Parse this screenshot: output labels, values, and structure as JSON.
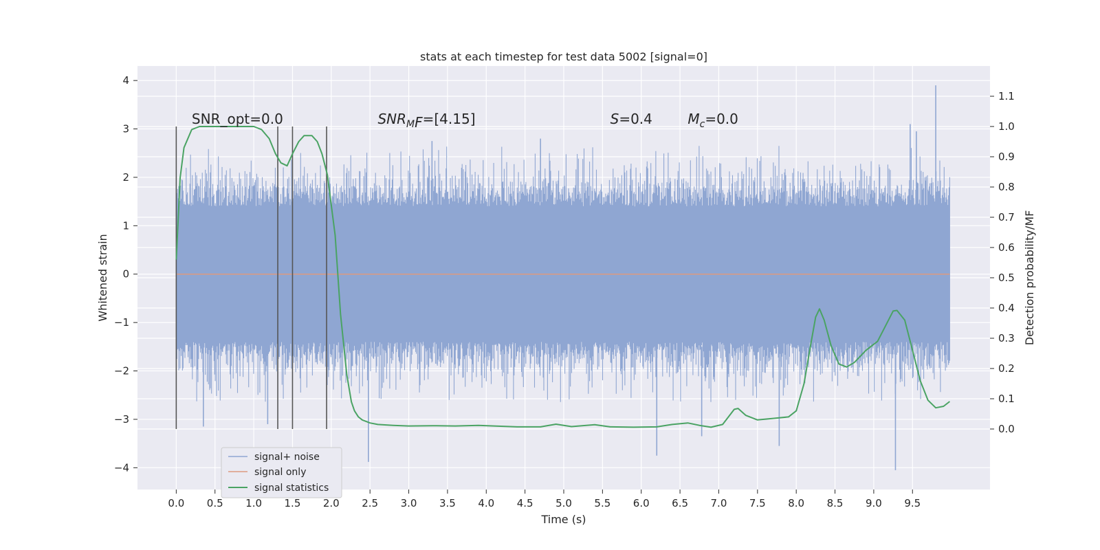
{
  "chart_data": {
    "type": "line",
    "title": "stats at each timestep for test data 5002 [signal=0]",
    "xlabel": "Time (s)",
    "ylabel_left": "Whitened strain",
    "ylabel_right": "Detection probability/MF",
    "xlim": [
      -0.5,
      10.5
    ],
    "ylim_left": [
      -4.45,
      4.3
    ],
    "ylim_right": [
      -0.2,
      1.2
    ],
    "x_ticks": [
      "0.0",
      "0.5",
      "1.0",
      "1.5",
      "2.0",
      "2.5",
      "3.0",
      "3.5",
      "4.0",
      "4.5",
      "5.0",
      "5.5",
      "6.0",
      "6.5",
      "7.0",
      "7.5",
      "8.0",
      "8.5",
      "9.0",
      "9.5"
    ],
    "x_tick_values": [
      0,
      0.5,
      1,
      1.5,
      2,
      2.5,
      3,
      3.5,
      4,
      4.5,
      5,
      5.5,
      6,
      6.5,
      7,
      7.5,
      8,
      8.5,
      9,
      9.5
    ],
    "y_left_ticks": [
      4,
      3,
      2,
      1,
      0,
      -1,
      -2,
      -3,
      -4
    ],
    "y_right_ticks": [
      "1.1",
      "1.0",
      "0.9",
      "0.8",
      "0.7",
      "0.6",
      "0.5",
      "0.4",
      "0.3",
      "0.2",
      "0.1",
      "0.0"
    ],
    "y_right_tick_values": [
      1.1,
      1.0,
      0.9,
      0.8,
      0.7,
      0.6,
      0.5,
      0.4,
      0.3,
      0.2,
      0.1,
      0.0
    ],
    "grid": true,
    "legend_position": "lower-left",
    "noise_band": {
      "x_start": 0,
      "x_end": 9.98,
      "typical_range": [
        -1.7,
        1.7
      ],
      "extreme_range": [
        -4.05,
        3.9
      ]
    },
    "noise_spikes": [
      {
        "x": 0.35,
        "y": -3.15
      },
      {
        "x": 2.48,
        "y": -3.88
      },
      {
        "x": 4.7,
        "y": 2.8
      },
      {
        "x": 6.2,
        "y": -3.75
      },
      {
        "x": 7.78,
        "y": -3.55
      },
      {
        "x": 9.28,
        "y": -4.05
      },
      {
        "x": 9.8,
        "y": 3.9
      },
      {
        "x": 9.47,
        "y": 3.1
      },
      {
        "x": 6.78,
        "y": -3.35
      },
      {
        "x": 1.18,
        "y": -3.1
      },
      {
        "x": 9.55,
        "y": 2.95
      },
      {
        "x": 3.3,
        "y": 2.75
      }
    ],
    "vlines": [
      {
        "x": 0.0,
        "y_range": [
          -3.2,
          3.05
        ]
      },
      {
        "x": 1.31,
        "y_range": [
          -3.2,
          3.05
        ]
      },
      {
        "x": 1.5,
        "y_range": [
          -3.2,
          3.05
        ]
      },
      {
        "x": 1.94,
        "y_range": [
          -3.2,
          3.05
        ]
      }
    ],
    "series": [
      {
        "name": "signal+ noise",
        "color": "#8fa6d2"
      },
      {
        "name": "signal only",
        "color": "#dd9a80",
        "y_left": 0
      },
      {
        "name": "signal statistics",
        "color": "#4aa363",
        "x": [
          0.0,
          0.05,
          0.1,
          0.2,
          0.3,
          0.5,
          0.8,
          1.0,
          1.1,
          1.2,
          1.28,
          1.35,
          1.43,
          1.5,
          1.58,
          1.65,
          1.75,
          1.82,
          1.88,
          1.95,
          2.05,
          2.12,
          2.2,
          2.26,
          2.3,
          2.35,
          2.4,
          2.5,
          2.6,
          2.8,
          3.0,
          3.3,
          3.6,
          3.9,
          4.1,
          4.4,
          4.7,
          4.9,
          5.1,
          5.4,
          5.6,
          5.9,
          6.2,
          6.4,
          6.6,
          6.75,
          6.9,
          7.05,
          7.2,
          7.25,
          7.35,
          7.5,
          7.7,
          7.9,
          8.0,
          8.1,
          8.18,
          8.25,
          8.3,
          8.36,
          8.45,
          8.55,
          8.65,
          8.75,
          8.9,
          9.05,
          9.15,
          9.25,
          9.3,
          9.4,
          9.5,
          9.6,
          9.7,
          9.8,
          9.9,
          9.98
        ],
        "y": [
          0.56,
          0.83,
          0.93,
          0.99,
          1.0,
          1.0,
          1.0,
          1.0,
          0.99,
          0.96,
          0.91,
          0.88,
          0.87,
          0.91,
          0.95,
          0.97,
          0.97,
          0.95,
          0.91,
          0.84,
          0.64,
          0.38,
          0.18,
          0.09,
          0.06,
          0.04,
          0.03,
          0.02,
          0.015,
          0.012,
          0.01,
          0.011,
          0.01,
          0.012,
          0.01,
          0.007,
          0.007,
          0.016,
          0.008,
          0.014,
          0.007,
          0.006,
          0.007,
          0.015,
          0.02,
          0.012,
          0.006,
          0.015,
          0.065,
          0.068,
          0.045,
          0.03,
          0.035,
          0.04,
          0.06,
          0.15,
          0.27,
          0.37,
          0.397,
          0.36,
          0.275,
          0.215,
          0.205,
          0.22,
          0.26,
          0.29,
          0.34,
          0.39,
          0.392,
          0.36,
          0.26,
          0.16,
          0.095,
          0.07,
          0.075,
          0.091
        ]
      }
    ],
    "annotations": [
      {
        "text": "SNR_opt=0.0",
        "x": 0.2,
        "y_left": 3.05
      },
      {
        "text_main": "SNR",
        "text_sub": "M",
        "text_tail": "F=[4.15]",
        "x": 2.6,
        "y_left": 3.05
      },
      {
        "text_main": "S",
        "text_tail": "=0.4",
        "x": 5.6,
        "y_left": 3.05
      },
      {
        "text_main": "M",
        "text_sub": "c",
        "text_tail": "=0.0",
        "x": 6.6,
        "y_left": 3.05
      }
    ],
    "colors": {
      "plot_bg": "#eaeaf2",
      "grid": "#ffffff",
      "vline": "#555555"
    }
  }
}
